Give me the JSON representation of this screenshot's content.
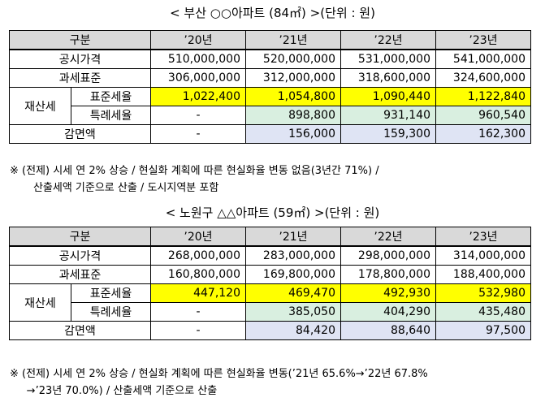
{
  "tables": [
    {
      "title": "< 부산 ○○아파트 (84㎡) >(단위 : 원)",
      "header": {
        "label": "구분",
        "years": [
          "’20년",
          "’21년",
          "’22년",
          "’23년"
        ]
      },
      "rows": {
        "public_price": {
          "label": "공시가격",
          "values": [
            "510,000,000",
            "520,000,000",
            "531,000,000",
            "541,000,000"
          ]
        },
        "tax_base": {
          "label": "과세표준",
          "values": [
            "306,000,000",
            "312,000,000",
            "318,600,000",
            "324,600,000"
          ]
        },
        "property_tax_group": "재산세",
        "standard_rate": {
          "label": "표준세율",
          "values": [
            "1,022,400",
            "1,054,800",
            "1,090,440",
            "1,122,840"
          ]
        },
        "special_rate": {
          "label": "특례세율",
          "values": [
            "-",
            "898,800",
            "931,140",
            "960,540"
          ]
        },
        "reduction": {
          "label": "감면액",
          "values": [
            "-",
            "156,000",
            "159,300",
            "162,300"
          ]
        }
      },
      "note": "※ (전제) 시세 연 2% 상승 / 현실화 계획에 따른 현실화율 변동 없음(3년간 71%) /\n       산출세액 기준으로 산출 / 도시지역분 포함"
    },
    {
      "title": "< 노원구 △△아파트 (59㎡) >(단위 : 원)",
      "header": {
        "label": "구분",
        "years": [
          "’20년",
          "’21년",
          "’22년",
          "’23년"
        ]
      },
      "rows": {
        "public_price": {
          "label": "공시가격",
          "values": [
            "268,000,000",
            "283,000,000",
            "298,000,000",
            "314,000,000"
          ]
        },
        "tax_base": {
          "label": "과세표준",
          "values": [
            "160,800,000",
            "169,800,000",
            "178,800,000",
            "188,400,000"
          ]
        },
        "property_tax_group": "재산세",
        "standard_rate": {
          "label": "표준세율",
          "values": [
            "447,120",
            "469,470",
            "492,930",
            "532,980"
          ]
        },
        "special_rate": {
          "label": "특례세율",
          "values": [
            "-",
            "385,050",
            "404,290",
            "435,480"
          ]
        },
        "reduction": {
          "label": "감면액",
          "values": [
            "-",
            "84,420",
            "88,640",
            "97,500"
          ]
        }
      },
      "note": "※ (전제) 시세 연 2% 상승 / 현실화 계획에 따른 현실화율 변동(’21년 65.6%→’22년 67.8%\n     →’23년 70.0%) / 산출세액 기준으로 산출"
    }
  ],
  "colors": {
    "header": "#d9d9d9",
    "standard_rate_highlight": "#ffff00",
    "special_rate_highlight": "#d9efe0",
    "reduction_highlight": "#dfe4f4"
  }
}
